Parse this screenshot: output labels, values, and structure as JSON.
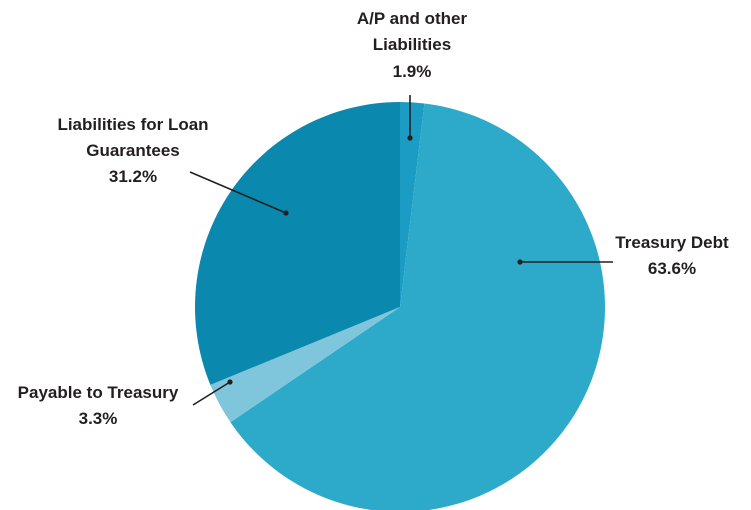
{
  "chart_data": {
    "type": "pie",
    "start": "top",
    "direction": "clockwise",
    "slices": [
      {
        "label_lines": [
          "A/P and other",
          "Liabilities"
        ],
        "pct_text": "1.9%",
        "value": 1.9,
        "color": "#1a9cc4"
      },
      {
        "label_lines": [
          "Treasury Debt"
        ],
        "pct_text": "63.6%",
        "value": 63.6,
        "color": "#2daac9"
      },
      {
        "label_lines": [
          "Payable to Treasury"
        ],
        "pct_text": "3.3%",
        "value": 3.3,
        "color": "#7fc5dc"
      },
      {
        "label_lines": [
          "Liabilities for Loan",
          "Guarantees"
        ],
        "pct_text": "31.2%",
        "value": 31.2,
        "color": "#0b88ad"
      }
    ]
  }
}
